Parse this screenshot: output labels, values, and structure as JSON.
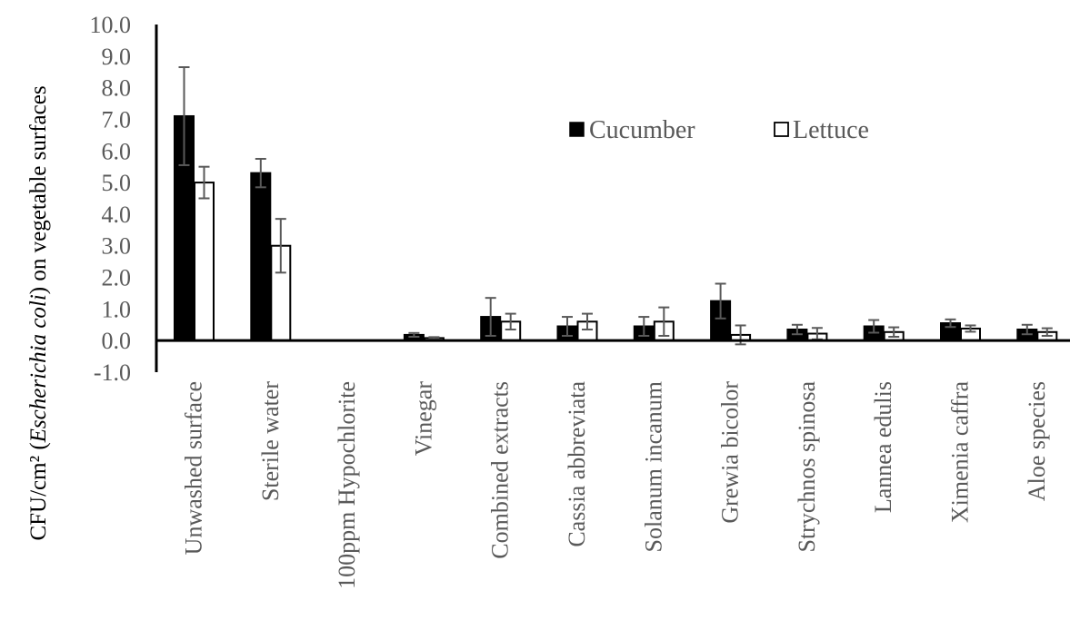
{
  "chart_data": {
    "type": "bar",
    "y_axis_title": {
      "prefix": "CFU/cm² (",
      "italic": "Escherichia coli",
      "suffix": ") on vegetable surfaces"
    },
    "ylim": [
      -1,
      10
    ],
    "y_ticks": [
      "10.0",
      "9.0",
      "8.0",
      "7.0",
      "6.0",
      "5.0",
      "4.0",
      "3.0",
      "2.0",
      "1.0",
      "0.0",
      "-1.0"
    ],
    "categories": [
      "Unwashed surface",
      "Sterile water",
      "100ppm Hypochlorite",
      "Vinegar",
      "Combined extracts",
      "Cassia abbreviata",
      "Solanum incanum",
      "Grewia bicolor",
      "Strychnos spinosa",
      "Lannea edulis",
      "Ximenia caffra",
      "Aloe species"
    ],
    "series": [
      {
        "name": "Cucumber",
        "fill": "#000000",
        "values": [
          7.1,
          5.3,
          0.0,
          0.18,
          0.75,
          0.45,
          0.45,
          1.25,
          0.35,
          0.45,
          0.55,
          0.35
        ],
        "errors": [
          1.55,
          0.45,
          0.0,
          0.06,
          0.6,
          0.3,
          0.3,
          0.55,
          0.15,
          0.2,
          0.12,
          0.15
        ]
      },
      {
        "name": "Lettuce",
        "fill": "#ffffff",
        "values": [
          5.0,
          3.0,
          0.0,
          0.08,
          0.6,
          0.6,
          0.6,
          0.18,
          0.22,
          0.27,
          0.38,
          0.27
        ],
        "errors": [
          0.5,
          0.85,
          0.0,
          0.03,
          0.25,
          0.25,
          0.45,
          0.3,
          0.18,
          0.15,
          0.1,
          0.12
        ]
      }
    ],
    "legend": {
      "placement": "top-right-center"
    },
    "grid": false,
    "colors": {
      "axis": "#000000",
      "error_bar": "#595959",
      "text": "#595959"
    }
  }
}
